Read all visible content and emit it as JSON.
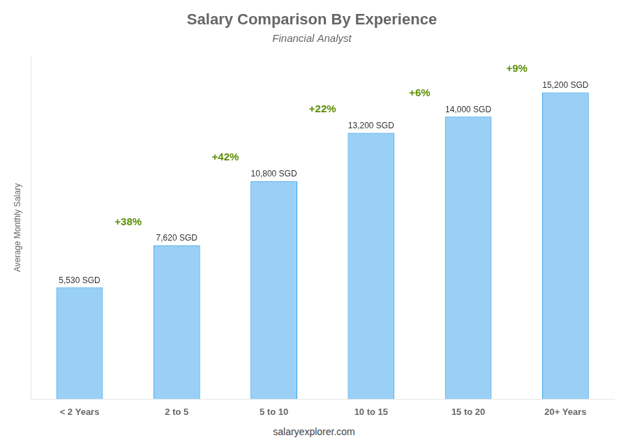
{
  "chart_data": {
    "type": "bar",
    "title": "Salary Comparison By Experience",
    "subtitle": "Financial Analyst",
    "ylabel": "Average Monthly Salary",
    "categories": [
      "< 2 Years",
      "2 to 5",
      "5 to 10",
      "10 to 15",
      "15 to 20",
      "20+ Years"
    ],
    "values": [
      5530,
      7620,
      10800,
      13200,
      14000,
      15200
    ],
    "value_labels": [
      "5,530 SGD",
      "7,620 SGD",
      "10,800 SGD",
      "13,200 SGD",
      "14,000 SGD",
      "15,200 SGD"
    ],
    "data_labels": true,
    "annotations": [
      "+38%",
      "+42%",
      "+22%",
      "+6%",
      "+9%"
    ],
    "footer": "salaryexplorer.com",
    "ylim": [
      0,
      17000
    ],
    "grid": false,
    "tick_labels": "x"
  }
}
